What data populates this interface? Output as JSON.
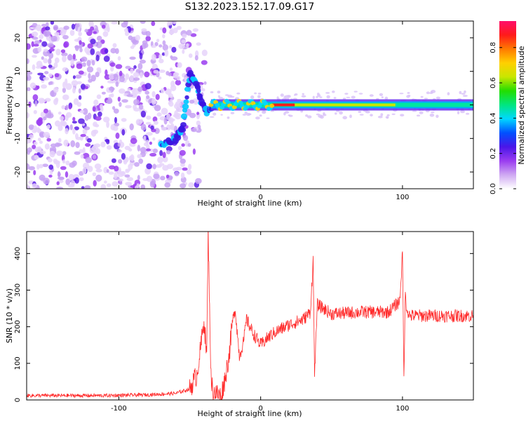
{
  "figure": {
    "title": "S132.2023.152.17.09.G17"
  },
  "chart_data": [
    {
      "type": "heatmap",
      "xlabel": "Height of straight line (km)",
      "ylabel": "Frequency (Hz)",
      "xlim": [
        -165,
        150
      ],
      "ylim": [
        -25,
        25
      ],
      "xticks": [
        -100,
        0,
        100
      ],
      "yticks": [
        -20,
        -10,
        0,
        10,
        20
      ],
      "colorbar": {
        "label": "Normalized spectral amplitude",
        "ticks": [
          0.0,
          0.2,
          0.4,
          0.6,
          0.8
        ],
        "range": [
          0,
          0.95
        ],
        "colormap": [
          "#ffffff",
          "#cfa8f2",
          "#9a3cf0",
          "#4a16e8",
          "#0050ff",
          "#00d8ff",
          "#00e680",
          "#22dd00",
          "#c8e600",
          "#ffd000",
          "#ff7a00",
          "#ff1a1a",
          "#ff0d6a"
        ]
      },
      "features": {
        "noise_region_x": [
          -165,
          -45
        ],
        "drift_segment": {
          "x": [
            -70,
            -60,
            -55,
            -50,
            -45,
            -42,
            -38,
            -30
          ],
          "y": [
            -12,
            -10,
            -7,
            9,
            6,
            1,
            -2,
            0
          ]
        },
        "ridge": {
          "x": [
            -35,
            150
          ],
          "y": 0,
          "peak_x": [
            10,
            95
          ]
        }
      }
    },
    {
      "type": "line",
      "xlabel": "Height of straight line (km)",
      "ylabel": "SNR (10 * v/v)",
      "xlim": [
        -165,
        150
      ],
      "ylim": [
        0,
        460
      ],
      "xticks": [
        -100,
        0,
        100
      ],
      "yticks": [
        0,
        100,
        200,
        300,
        400
      ],
      "color": "#ff2a2a",
      "series": [
        {
          "x": [
            -165,
            -140,
            -110,
            -80,
            -60,
            -50,
            -45,
            -42,
            -40,
            -38,
            -37,
            -36,
            -35,
            -34,
            -32,
            -30,
            -28,
            -25,
            -22,
            -20,
            -18,
            -15,
            -12,
            -10,
            -5,
            0,
            5,
            10,
            20,
            30,
            35,
            37,
            38,
            40,
            50,
            70,
            90,
            98,
            100,
            101,
            102,
            103,
            105,
            110,
            130,
            150
          ],
          "y": [
            12,
            12,
            12,
            14,
            18,
            30,
            70,
            150,
            220,
            120,
            460,
            250,
            60,
            30,
            20,
            15,
            10,
            60,
            130,
            210,
            250,
            120,
            160,
            220,
            180,
            150,
            170,
            185,
            205,
            220,
            240,
            380,
            70,
            260,
            235,
            240,
            240,
            270,
            400,
            60,
            290,
            250,
            230,
            230,
            230,
            230
          ]
        }
      ]
    }
  ]
}
